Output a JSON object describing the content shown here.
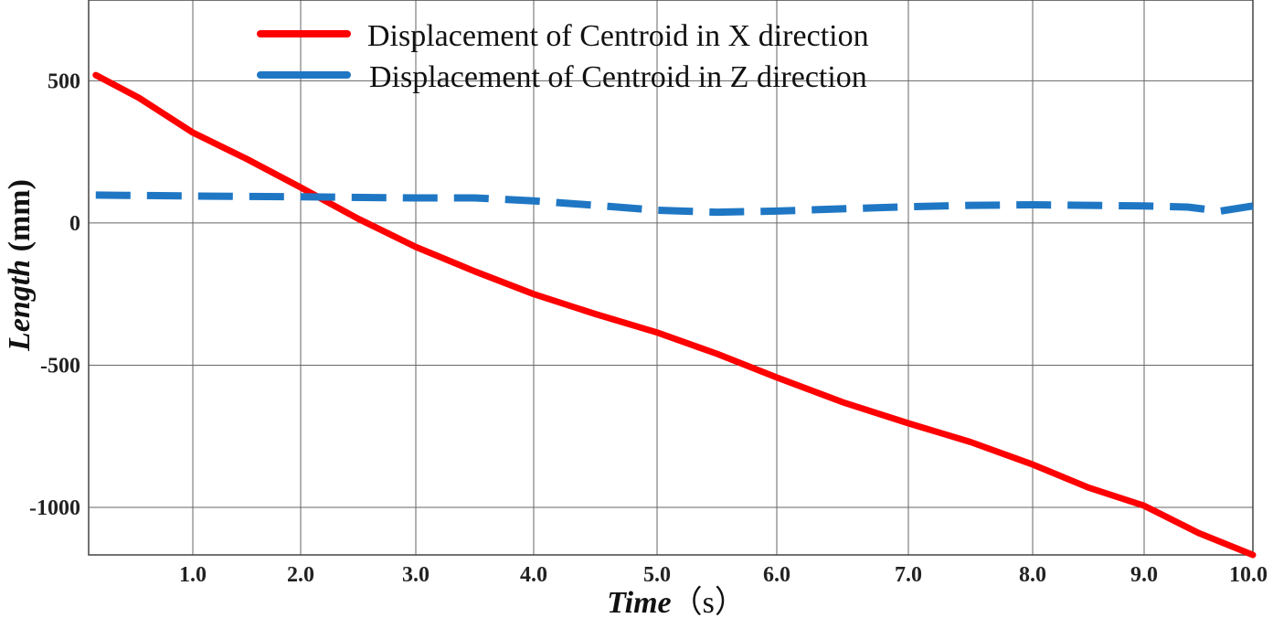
{
  "chart_data": {
    "type": "line",
    "title": "",
    "xlabel": "Time",
    "xlabel_unit": "（s）",
    "ylabel": "Length",
    "ylabel_unit": " (mm)",
    "xlim": [
      0.05,
      10.0
    ],
    "ylim": [
      -1167,
      784
    ],
    "grid": true,
    "legend_position": "top-center",
    "x_ticks": [
      "1.0",
      "2.0",
      "3.0",
      "4.0",
      "5.0",
      "6.0",
      "7.0",
      "8.0",
      "9.0",
      "10.0"
    ],
    "y_ticks": [
      500,
      0,
      -500,
      -1000
    ],
    "y_tick_labels": [
      "500",
      "0",
      "-500",
      "-1000"
    ],
    "series": [
      {
        "name": "Displacement of Centroid in X direction",
        "color": "#ff0000",
        "style": "solid",
        "x": [
          0.1,
          0.5,
          1.0,
          1.5,
          2.0,
          2.5,
          3.0,
          3.5,
          4.0,
          4.5,
          5.0,
          5.5,
          6.0,
          6.5,
          7.0,
          7.5,
          8.0,
          8.5,
          9.0,
          9.5,
          10.0
        ],
        "y": [
          520,
          440,
          318,
          225,
          125,
          15,
          -84,
          -170,
          -250,
          -320,
          -385,
          -460,
          -543,
          -630,
          -704,
          -770,
          -849,
          -930,
          -994,
          -1090,
          -1167
        ]
      },
      {
        "name": "Displacement of Centroid in Z direction",
        "color": "#1f77c4",
        "style": "dashed",
        "x": [
          0.1,
          1.0,
          2.0,
          3.0,
          3.5,
          4.0,
          4.5,
          5.0,
          5.5,
          6.0,
          6.5,
          7.0,
          7.5,
          8.0,
          8.5,
          9.0,
          9.4,
          9.7,
          10.0
        ],
        "y": [
          98,
          95,
          92,
          88,
          88,
          78,
          62,
          45,
          38,
          42,
          50,
          57,
          62,
          64,
          62,
          60,
          56,
          42,
          60
        ]
      }
    ]
  }
}
